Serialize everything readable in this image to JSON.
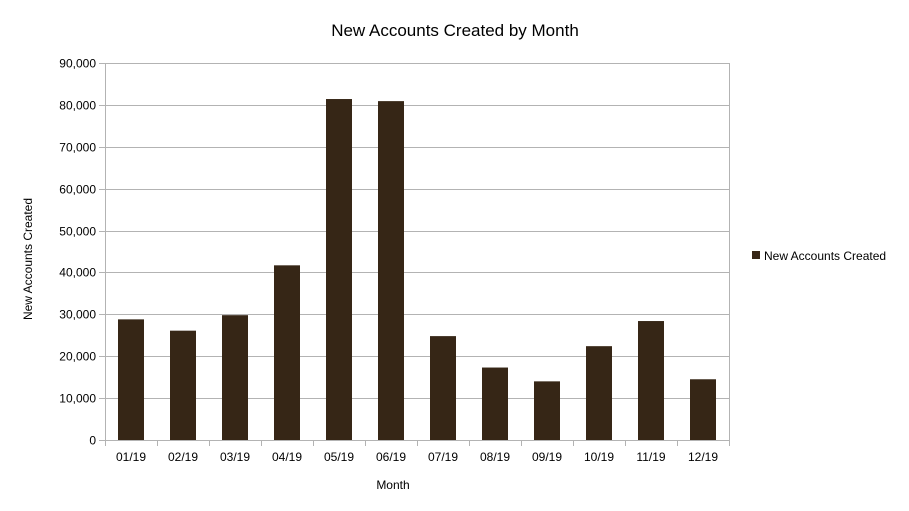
{
  "chart_data": {
    "type": "bar",
    "title": "New Accounts Created by Month",
    "xlabel": "Month",
    "ylabel": "New Accounts Created",
    "categories": [
      "01/19",
      "02/19",
      "03/19",
      "04/19",
      "05/19",
      "06/19",
      "07/19",
      "08/19",
      "09/19",
      "10/19",
      "11/19",
      "12/19"
    ],
    "series": [
      {
        "name": "New Accounts Created",
        "color": "#362616",
        "values": [
          28800,
          26100,
          29800,
          41700,
          81400,
          80900,
          24800,
          17300,
          14000,
          22400,
          28400,
          14500
        ]
      }
    ],
    "ylim": [
      0,
      90000
    ],
    "yticks": [
      0,
      10000,
      20000,
      30000,
      40000,
      50000,
      60000,
      70000,
      80000,
      90000
    ],
    "ytick_labels": [
      "0",
      "10,000",
      "20,000",
      "30,000",
      "40,000",
      "50,000",
      "60,000",
      "70,000",
      "80,000",
      "90,000"
    ],
    "grid": true,
    "legend_position": "right"
  }
}
